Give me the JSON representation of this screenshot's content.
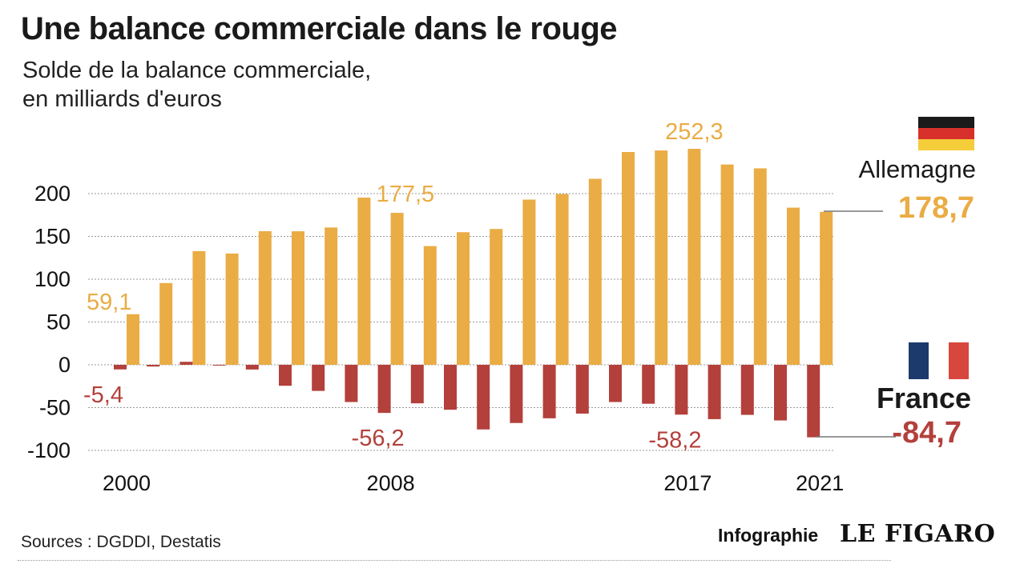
{
  "header": {
    "title": "Une balance commerciale dans le rouge",
    "subtitle_line1": "Solde de la balance commerciale,",
    "subtitle_line2": "en milliards d'euros"
  },
  "footer": {
    "source": "Sources : DGDDI, Destatis",
    "credit": "Infographie",
    "logo": "LE FIGARO"
  },
  "colors": {
    "germany": "#eaac44",
    "france": "#b3403b",
    "germany_flag": [
      "#1a1a1a",
      "#d8312b",
      "#f5cd3a"
    ],
    "france_flag": [
      "#1c3a6c",
      "#ffffff",
      "#d8473e"
    ]
  },
  "chart_data": {
    "type": "bar",
    "ylim": [
      -100,
      250
    ],
    "yticks": [
      200,
      150,
      100,
      50,
      0,
      -50,
      -100
    ],
    "x": [
      2000,
      2001,
      2002,
      2003,
      2004,
      2005,
      2006,
      2007,
      2008,
      2009,
      2010,
      2011,
      2012,
      2013,
      2014,
      2015,
      2016,
      2017,
      2018,
      2019,
      2020,
      2021
    ],
    "xtick_labels": [
      "2000",
      "2008",
      "2017",
      "2021"
    ],
    "grid": true,
    "series": [
      {
        "name": "Allemagne",
        "color": "#eaac44",
        "values": [
          59.1,
          95.5,
          132.8,
          130.0,
          156.1,
          156.0,
          160.4,
          195.3,
          177.5,
          138.7,
          154.9,
          158.7,
          193.0,
          199.5,
          217.3,
          248.6,
          250.4,
          252.3,
          234.0,
          229.5,
          183.6,
          178.7
        ]
      },
      {
        "name": "France",
        "color": "#b3403b",
        "values": [
          -5.4,
          -2.0,
          3.5,
          -0.5,
          -5.5,
          -24.5,
          -30.5,
          -43.5,
          -56.2,
          -45.0,
          -52.5,
          -75.5,
          -68.0,
          -62.5,
          -57.0,
          -43.5,
          -45.5,
          -58.2,
          -63.5,
          -58.5,
          -65.0,
          -84.7
        ]
      }
    ],
    "annotations": [
      {
        "series": "Allemagne",
        "year": 2000,
        "text": "59,1"
      },
      {
        "series": "Allemagne",
        "year": 2008,
        "text": "177,5"
      },
      {
        "series": "Allemagne",
        "year": 2017,
        "text": "252,3"
      },
      {
        "series": "France",
        "year": 2000,
        "text": "-5,4"
      },
      {
        "series": "France",
        "year": 2008,
        "text": "-56,2"
      },
      {
        "series": "France",
        "year": 2017,
        "text": "-58,2"
      }
    ],
    "end_labels": {
      "germany_name": "Allemagne",
      "germany_value": "178,7",
      "france_name": "France",
      "france_value": "-84,7"
    }
  }
}
